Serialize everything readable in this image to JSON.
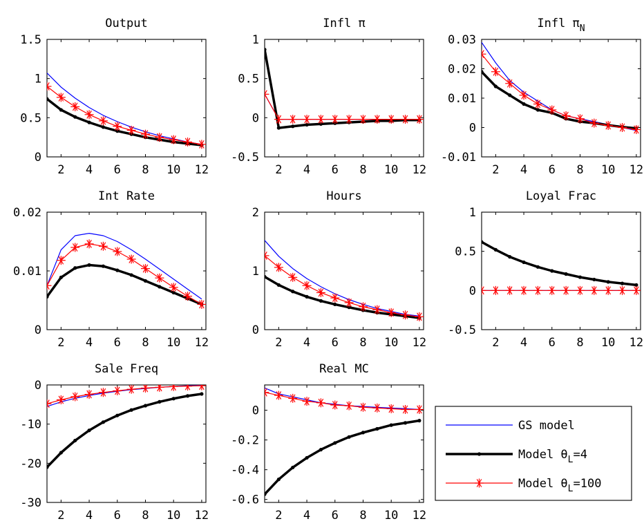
{
  "figure": {
    "series_styles": [
      {
        "key": "gs",
        "color": "#0000ff",
        "width": 1.2,
        "marker": "none"
      },
      {
        "key": "m4",
        "color": "#000000",
        "width": 3.5,
        "marker": "dot"
      },
      {
        "key": "m100",
        "color": "#ff0000",
        "width": 1.2,
        "marker": "star"
      }
    ],
    "legend": {
      "placement": "bottom-right",
      "entries": [
        {
          "key": "gs",
          "label": "GS model",
          "sub": "",
          "suffix": ""
        },
        {
          "key": "m4",
          "label": "Model    θ",
          "sub": "L",
          "suffix": "=4"
        },
        {
          "key": "m100",
          "label": "Model    θ",
          "sub": "L",
          "suffix": "=100"
        }
      ]
    }
  },
  "chart_data": [
    {
      "type": "line",
      "title": "Output",
      "title_sub": "",
      "x": [
        1,
        2,
        3,
        4,
        5,
        6,
        7,
        8,
        9,
        10,
        11,
        12
      ],
      "xlim": [
        1,
        12.3
      ],
      "xticks": [
        2,
        4,
        6,
        8,
        10,
        12
      ],
      "xtick_labels": [
        "2",
        "4",
        "6",
        "8",
        "10",
        "12"
      ],
      "ylim": [
        0,
        1.5
      ],
      "yticks": [
        0,
        0.5,
        1,
        1.5
      ],
      "ytick_labels": [
        "0",
        "0.5",
        "1",
        "1.5"
      ],
      "series": [
        {
          "key": "gs",
          "values": [
            1.07,
            0.89,
            0.75,
            0.63,
            0.53,
            0.45,
            0.38,
            0.32,
            0.27,
            0.23,
            0.19,
            0.16
          ]
        },
        {
          "key": "m4",
          "values": [
            0.74,
            0.6,
            0.51,
            0.44,
            0.38,
            0.33,
            0.29,
            0.25,
            0.22,
            0.19,
            0.17,
            0.15
          ]
        },
        {
          "key": "m100",
          "values": [
            0.9,
            0.76,
            0.64,
            0.54,
            0.46,
            0.39,
            0.34,
            0.29,
            0.25,
            0.22,
            0.19,
            0.16
          ]
        }
      ]
    },
    {
      "type": "line",
      "title": "Infl π",
      "title_sub": "",
      "x": [
        1,
        2,
        3,
        4,
        5,
        6,
        7,
        8,
        9,
        10,
        11,
        12
      ],
      "xlim": [
        1,
        12.3
      ],
      "xticks": [
        2,
        4,
        6,
        8,
        10,
        12
      ],
      "xtick_labels": [
        "2",
        "4",
        "6",
        "8",
        "10",
        "12"
      ],
      "ylim": [
        -0.5,
        1
      ],
      "yticks": [
        -0.5,
        0,
        0.5,
        1
      ],
      "ytick_labels": [
        "-0.5",
        "0",
        "0.5",
        "1"
      ],
      "series": [
        {
          "key": "gs",
          "values": [
            0.3,
            -0.02,
            -0.02,
            -0.02,
            -0.02,
            -0.02,
            -0.02,
            -0.02,
            -0.02,
            -0.02,
            -0.02,
            -0.02
          ]
        },
        {
          "key": "m4",
          "values": [
            0.87,
            -0.13,
            -0.11,
            -0.09,
            -0.08,
            -0.07,
            -0.06,
            -0.05,
            -0.04,
            -0.04,
            -0.03,
            -0.03
          ]
        },
        {
          "key": "m100",
          "values": [
            0.3,
            -0.02,
            -0.02,
            -0.02,
            -0.02,
            -0.02,
            -0.02,
            -0.02,
            -0.02,
            -0.02,
            -0.02,
            -0.02
          ]
        }
      ]
    },
    {
      "type": "line",
      "title": "Infl π",
      "title_sub": "N",
      "x": [
        1,
        2,
        3,
        4,
        5,
        6,
        7,
        8,
        9,
        10,
        11,
        12
      ],
      "xlim": [
        1,
        12.3
      ],
      "xticks": [
        2,
        4,
        6,
        8,
        10,
        12
      ],
      "xtick_labels": [
        "2",
        "4",
        "6",
        "8",
        "10",
        "12"
      ],
      "ylim": [
        -0.01,
        0.03
      ],
      "yticks": [
        -0.01,
        0,
        0.01,
        0.02,
        0.03
      ],
      "ytick_labels": [
        "-0.01",
        "0",
        "0.01",
        "0.02",
        "0.03"
      ],
      "series": [
        {
          "key": "gs",
          "values": [
            0.029,
            0.022,
            0.016,
            0.012,
            0.009,
            0.006,
            0.004,
            0.003,
            0.002,
            0.001,
            0.0,
            -0.001
          ]
        },
        {
          "key": "m4",
          "values": [
            0.019,
            0.014,
            0.011,
            0.008,
            0.006,
            0.005,
            0.003,
            0.002,
            0.0015,
            0.0008,
            0.0002,
            -0.0003
          ]
        },
        {
          "key": "m100",
          "values": [
            0.025,
            0.019,
            0.015,
            0.011,
            0.008,
            0.006,
            0.004,
            0.003,
            0.0015,
            0.0007,
            0.0,
            -0.0007
          ]
        }
      ]
    },
    {
      "type": "line",
      "title": "Int Rate",
      "title_sub": "",
      "x": [
        1,
        2,
        3,
        4,
        5,
        6,
        7,
        8,
        9,
        10,
        11,
        12
      ],
      "xlim": [
        1,
        12.3
      ],
      "xticks": [
        2,
        4,
        6,
        8,
        10,
        12
      ],
      "xtick_labels": [
        "2",
        "4",
        "6",
        "8",
        "10",
        "12"
      ],
      "ylim": [
        0,
        0.02
      ],
      "yticks": [
        0,
        0.01,
        0.02
      ],
      "ytick_labels": [
        "0",
        "0.01",
        "0.02"
      ],
      "series": [
        {
          "key": "gs",
          "values": [
            0.0075,
            0.0136,
            0.016,
            0.0164,
            0.016,
            0.015,
            0.0136,
            0.012,
            0.0103,
            0.0086,
            0.0069,
            0.0052
          ]
        },
        {
          "key": "m4",
          "values": [
            0.0056,
            0.0089,
            0.0105,
            0.011,
            0.0108,
            0.0101,
            0.0093,
            0.0083,
            0.0073,
            0.0063,
            0.0053,
            0.0043
          ]
        },
        {
          "key": "m100",
          "values": [
            0.0075,
            0.0118,
            0.014,
            0.0146,
            0.0142,
            0.0133,
            0.012,
            0.0104,
            0.0088,
            0.0072,
            0.0057,
            0.0043
          ]
        }
      ]
    },
    {
      "type": "line",
      "title": "Hours",
      "title_sub": "",
      "x": [
        1,
        2,
        3,
        4,
        5,
        6,
        7,
        8,
        9,
        10,
        11,
        12
      ],
      "xlim": [
        1,
        12.3
      ],
      "xticks": [
        2,
        4,
        6,
        8,
        10,
        12
      ],
      "xtick_labels": [
        "2",
        "4",
        "6",
        "8",
        "10",
        "12"
      ],
      "ylim": [
        0,
        2
      ],
      "yticks": [
        0,
        1,
        2
      ],
      "ytick_labels": [
        "0",
        "1",
        "2"
      ],
      "series": [
        {
          "key": "gs",
          "values": [
            1.52,
            1.25,
            1.04,
            0.87,
            0.73,
            0.61,
            0.51,
            0.43,
            0.36,
            0.31,
            0.26,
            0.23
          ]
        },
        {
          "key": "m4",
          "values": [
            0.9,
            0.76,
            0.65,
            0.56,
            0.49,
            0.43,
            0.38,
            0.33,
            0.29,
            0.26,
            0.23,
            0.2
          ]
        },
        {
          "key": "m100",
          "values": [
            1.26,
            1.06,
            0.89,
            0.75,
            0.63,
            0.54,
            0.46,
            0.39,
            0.34,
            0.29,
            0.25,
            0.22
          ]
        }
      ]
    },
    {
      "type": "line",
      "title": "Loyal Frac",
      "title_sub": "",
      "x": [
        1,
        2,
        3,
        4,
        5,
        6,
        7,
        8,
        9,
        10,
        11,
        12
      ],
      "xlim": [
        1,
        12.3
      ],
      "xticks": [
        2,
        4,
        6,
        8,
        10,
        12
      ],
      "xtick_labels": [
        "2",
        "4",
        "6",
        "8",
        "10",
        "12"
      ],
      "ylim": [
        -0.5,
        1
      ],
      "yticks": [
        -0.5,
        0,
        0.5,
        1
      ],
      "ytick_labels": [
        "-0.5",
        "0",
        "0.5",
        "1"
      ],
      "series": [
        {
          "key": "gs",
          "values": [
            0,
            0,
            0,
            0,
            0,
            0,
            0,
            0,
            0,
            0,
            0,
            0
          ]
        },
        {
          "key": "m4",
          "values": [
            0.62,
            0.52,
            0.43,
            0.36,
            0.3,
            0.25,
            0.21,
            0.17,
            0.14,
            0.11,
            0.09,
            0.07
          ]
        },
        {
          "key": "m100",
          "values": [
            0,
            0,
            0,
            0,
            0,
            0,
            0,
            0,
            0,
            0,
            0,
            0
          ]
        }
      ]
    },
    {
      "type": "line",
      "title": "Sale Freq",
      "title_sub": "",
      "x": [
        1,
        2,
        3,
        4,
        5,
        6,
        7,
        8,
        9,
        10,
        11,
        12
      ],
      "xlim": [
        1,
        12.3
      ],
      "xticks": [
        2,
        4,
        6,
        8,
        10,
        12
      ],
      "xtick_labels": [
        "2",
        "4",
        "6",
        "8",
        "10",
        "12"
      ],
      "ylim": [
        -30,
        0
      ],
      "yticks": [
        -30,
        -20,
        -10,
        0
      ],
      "ytick_labels": [
        "-30",
        "-20",
        "-10",
        "0"
      ],
      "series": [
        {
          "key": "gs",
          "values": [
            -5.5,
            -4.3,
            -3.4,
            -2.7,
            -2.1,
            -1.6,
            -1.2,
            -0.9,
            -0.6,
            -0.4,
            -0.2,
            -0.1
          ]
        },
        {
          "key": "m4",
          "values": [
            -21.0,
            -17.3,
            -14.2,
            -11.6,
            -9.5,
            -7.8,
            -6.4,
            -5.3,
            -4.3,
            -3.5,
            -2.8,
            -2.3
          ]
        },
        {
          "key": "m100",
          "values": [
            -4.8,
            -3.8,
            -3.0,
            -2.4,
            -1.9,
            -1.5,
            -1.1,
            -0.8,
            -0.6,
            -0.4,
            -0.3,
            -0.2
          ]
        }
      ]
    },
    {
      "type": "line",
      "title": "Real MC",
      "title_sub": "",
      "x": [
        1,
        2,
        3,
        4,
        5,
        6,
        7,
        8,
        9,
        10,
        11,
        12
      ],
      "xlim": [
        1,
        12.3
      ],
      "xticks": [
        2,
        4,
        6,
        8,
        10,
        12
      ],
      "xtick_labels": [
        "2",
        "4",
        "6",
        "8",
        "10",
        "12"
      ],
      "ylim": [
        -0.62,
        0.17
      ],
      "yticks": [
        -0.6,
        -0.4,
        -0.2,
        0
      ],
      "ytick_labels": [
        "-0.6",
        "-0.4",
        "-0.2",
        "0"
      ],
      "series": [
        {
          "key": "gs",
          "values": [
            0.15,
            0.11,
            0.09,
            0.07,
            0.05,
            0.04,
            0.03,
            0.025,
            0.02,
            0.015,
            0.01,
            0.005
          ]
        },
        {
          "key": "m4",
          "values": [
            -0.565,
            -0.465,
            -0.385,
            -0.32,
            -0.265,
            -0.22,
            -0.18,
            -0.15,
            -0.125,
            -0.1,
            -0.085,
            -0.07
          ]
        },
        {
          "key": "m100",
          "values": [
            0.12,
            0.1,
            0.08,
            0.06,
            0.05,
            0.035,
            0.03,
            0.02,
            0.015,
            0.01,
            0.005,
            0.005
          ]
        }
      ]
    }
  ]
}
